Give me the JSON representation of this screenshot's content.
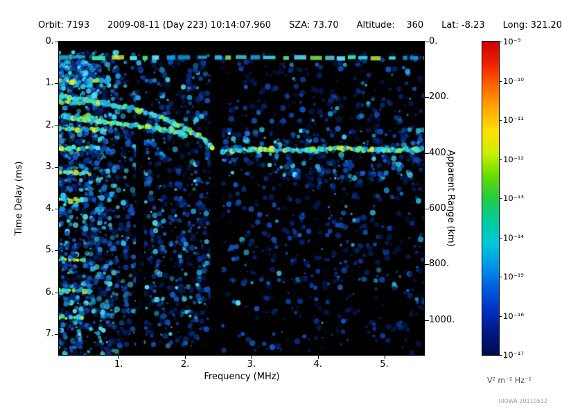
{
  "header": {
    "fields": [
      {
        "key": "orbit",
        "text": "Orbit: 7193"
      },
      {
        "key": "datetime",
        "text": "2009-08-11 (Day 223) 10:14:07.960"
      },
      {
        "key": "sza",
        "text": "SZA: 73.70"
      },
      {
        "key": "altitude",
        "text": "Altitude:    360"
      },
      {
        "key": "lat",
        "text": "Lat: -8.23"
      },
      {
        "key": "long",
        "text": "Long: 321.20"
      }
    ]
  },
  "footer": {
    "credit": "UIOWA 20110512"
  },
  "chart_data": {
    "type": "heatmap",
    "subtype": "radar-sounder-ionogram-spectrogram",
    "xlabel": "Frequency (MHz)",
    "ylabel_left": "Time Delay (ms)",
    "ylabel_right": "Apparent Range (km)",
    "x_range": [
      0.1,
      5.6
    ],
    "y_range_ms": [
      0,
      7.5
    ],
    "km_per_ms": 150,
    "x_ticks": [
      "1.",
      "2.",
      "3.",
      "4.",
      "5."
    ],
    "y_ticks_left": [
      "0.",
      "1.",
      "2.",
      "3.",
      "4.",
      "5.",
      "6.",
      "7."
    ],
    "y_ticks_right": [
      "0.",
      "200.",
      "400.",
      "600.",
      "800.",
      "1000."
    ],
    "background_color": "#000000",
    "colorbar": {
      "unit": "V² m⁻² Hz⁻¹",
      "tick_labels": [
        "10⁻⁹",
        "10⁻¹⁰",
        "10⁻¹¹",
        "10⁻¹²",
        "10⁻¹³",
        "10⁻¹⁴",
        "10⁻¹⁵",
        "10⁻¹⁶",
        "10⁻¹⁷"
      ],
      "scale_max_exp": -9,
      "scale_min_exp": -17,
      "colors": [
        "#cc0000",
        "#ee2200",
        "#ff6600",
        "#ffaa00",
        "#ffe000",
        "#ccee00",
        "#66dd00",
        "#22cc44",
        "#00cc99",
        "#00c8d8",
        "#0096e8",
        "#005ce0",
        "#0030c0",
        "#001880",
        "#000a50"
      ]
    },
    "features": [
      {
        "type": "noise_region",
        "f_range": [
          0.1,
          1.0
        ],
        "t_range": [
          0.25,
          7.5
        ],
        "density": 1100,
        "bright_frac": 0.32
      },
      {
        "type": "noise_region",
        "f_range": [
          1.0,
          2.4
        ],
        "t_range": [
          0.3,
          7.3
        ],
        "density": 850,
        "bright_frac": 0.22
      },
      {
        "type": "noise_region",
        "f_range": [
          2.55,
          5.6
        ],
        "t_range": [
          0.3,
          5.8
        ],
        "density": 650,
        "bright_frac": 0.1
      },
      {
        "type": "noise_region",
        "f_range": [
          2.55,
          5.6
        ],
        "t_range": [
          2.1,
          3.3
        ],
        "density": 260,
        "bright_frac": 0.25
      },
      {
        "type": "noise_region",
        "f_range": [
          2.55,
          5.6
        ],
        "t_range": [
          5.6,
          7.45
        ],
        "density": 150,
        "bright_frac": 0.04
      },
      {
        "type": "noise_region",
        "f_range": [
          0.1,
          0.6
        ],
        "t_range": [
          0.45,
          1.15
        ],
        "density": 130,
        "bright_frac": 0.5
      },
      {
        "type": "attenuation_gap",
        "f_range": [
          1.26,
          1.38
        ],
        "t_range": [
          1.4,
          7.5
        ]
      },
      {
        "type": "attenuation_gap",
        "f_range": [
          2.38,
          2.55
        ],
        "t_range": [
          0.5,
          7.5
        ]
      },
      {
        "type": "harmonic_band",
        "t": 0.38,
        "f_range": [
          0.1,
          5.6
        ],
        "style": "dashed"
      },
      {
        "type": "local_band",
        "t": 0.95,
        "f_range": [
          0.12,
          0.85
        ]
      },
      {
        "type": "local_band",
        "t": 1.45,
        "f_range": [
          0.1,
          0.9
        ]
      },
      {
        "type": "local_band",
        "t": 1.8,
        "f_range": [
          0.1,
          0.75
        ]
      },
      {
        "type": "local_band",
        "t": 2.1,
        "f_range": [
          0.1,
          0.8
        ]
      },
      {
        "type": "local_band",
        "t": 2.55,
        "f_range": [
          0.1,
          0.7
        ]
      },
      {
        "type": "local_band",
        "t": 3.15,
        "f_range": [
          0.12,
          0.6
        ]
      },
      {
        "type": "local_band",
        "t": 3.8,
        "f_range": [
          0.1,
          0.55
        ]
      },
      {
        "type": "local_band",
        "t": 5.2,
        "f_range": [
          0.1,
          0.5
        ]
      },
      {
        "type": "local_band",
        "t": 5.95,
        "f_range": [
          0.1,
          0.5
        ]
      },
      {
        "type": "local_band",
        "t": 6.6,
        "f_range": [
          0.1,
          0.45
        ]
      },
      {
        "type": "trace",
        "name": "ionospheric-echo-upper",
        "points": [
          [
            0.15,
            1.3
          ],
          [
            0.7,
            1.45
          ],
          [
            1.2,
            1.6
          ],
          [
            1.7,
            1.85
          ],
          [
            2.05,
            2.1
          ],
          [
            2.3,
            2.35
          ],
          [
            2.42,
            2.55
          ]
        ]
      },
      {
        "type": "trace",
        "name": "ionospheric-echo-lower",
        "points": [
          [
            0.15,
            1.8
          ],
          [
            0.7,
            1.9
          ],
          [
            1.2,
            2.0
          ],
          [
            1.7,
            2.12
          ],
          [
            2.0,
            2.22
          ]
        ]
      },
      {
        "type": "trace",
        "name": "horizontal-echo",
        "points": [
          [
            2.55,
            2.62
          ],
          [
            3.1,
            2.58
          ],
          [
            3.7,
            2.6
          ],
          [
            4.3,
            2.56
          ],
          [
            4.9,
            2.6
          ],
          [
            5.55,
            2.58
          ]
        ]
      }
    ]
  }
}
